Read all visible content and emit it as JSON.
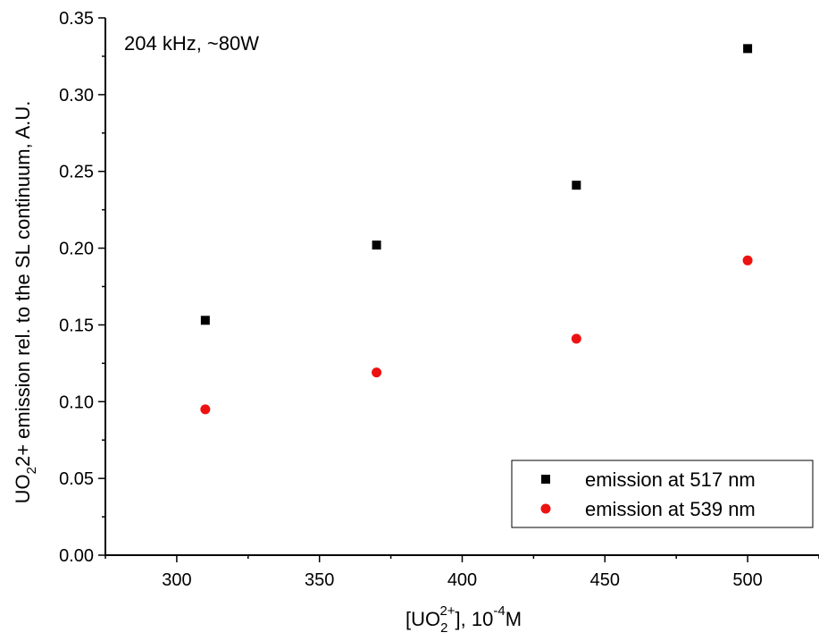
{
  "chart_data": {
    "type": "scatter",
    "annotation": "204 kHz, ~80W",
    "xlabel": {
      "pre": "[UO",
      "sub": "2",
      "sup": "2+",
      "post": "], 10",
      "sup2": "-4",
      "post2": "M"
    },
    "ylabel": {
      "pre": "UO",
      "sub": "2",
      "post": "2+ emission rel. to the SL continuum, A.U."
    },
    "xlim": [
      275,
      525
    ],
    "ylim": [
      0.0,
      0.35
    ],
    "x_ticks": [
      300,
      350,
      400,
      450,
      500
    ],
    "x_tick_labels": [
      "300",
      "350",
      "400",
      "450",
      "500"
    ],
    "y_ticks": [
      0.0,
      0.05,
      0.1,
      0.15,
      0.2,
      0.25,
      0.3,
      0.35
    ],
    "y_tick_labels": [
      "0.00",
      "0.05",
      "0.10",
      "0.15",
      "0.20",
      "0.25",
      "0.30",
      "0.35"
    ],
    "grid": false,
    "legend_position": "bottom-right",
    "series": [
      {
        "name": "emission at 517 nm",
        "marker": "square",
        "color": "#000000",
        "x": [
          310,
          370,
          440,
          500
        ],
        "y": [
          0.153,
          0.202,
          0.241,
          0.33
        ]
      },
      {
        "name": "emission at 539 nm",
        "marker": "circle",
        "color": "#ee1111",
        "x": [
          310,
          370,
          440,
          500
        ],
        "y": [
          0.095,
          0.119,
          0.141,
          0.192
        ]
      }
    ]
  }
}
